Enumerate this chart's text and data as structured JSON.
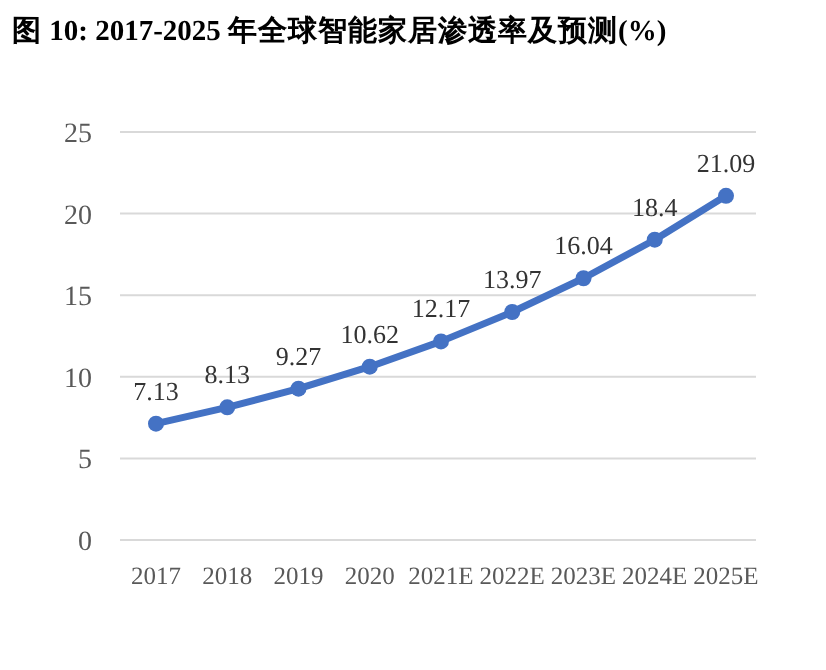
{
  "chart_data": {
    "type": "line",
    "title": "图 10: 2017-2025 年全球智能家居渗透率及预测(%)",
    "categories": [
      "2017",
      "2018",
      "2019",
      "2020",
      "2021E",
      "2022E",
      "2023E",
      "2024E",
      "2025E"
    ],
    "series": [
      {
        "color": "#4472c4",
        "values": [
          7.13,
          8.13,
          9.27,
          10.62,
          12.17,
          13.97,
          16.04,
          18.4,
          21.09
        ]
      }
    ],
    "ylim": [
      0,
      25
    ],
    "yticks": [
      0,
      5,
      10,
      15,
      20,
      25
    ],
    "grid": "y",
    "data_labels": true,
    "marker": "circle",
    "line_style": "solid"
  }
}
